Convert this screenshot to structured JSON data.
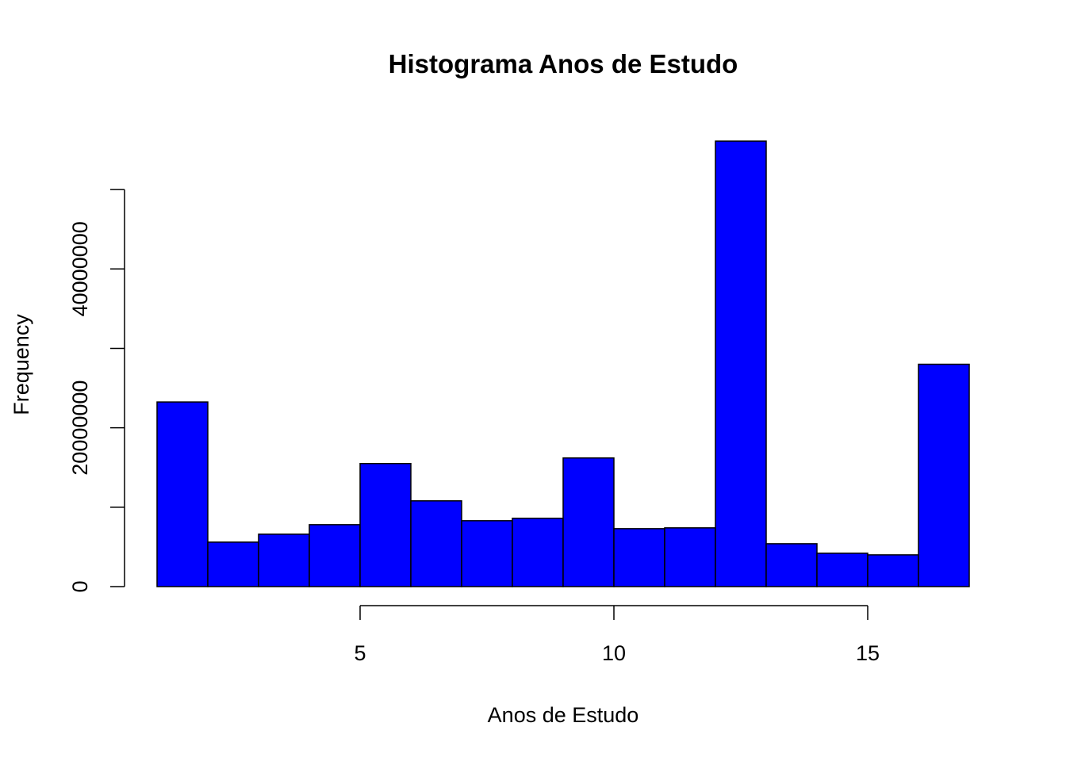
{
  "chart_data": {
    "type": "histogram",
    "title": "Histograma Anos de Estudo",
    "x_label": "Anos de Estudo",
    "y_label": "Frequency",
    "bins": [
      1,
      2,
      3,
      4,
      5,
      6,
      7,
      8,
      9,
      10,
      11,
      12,
      13,
      14,
      15,
      16,
      17
    ],
    "values": [
      23250000,
      5600000,
      6600000,
      7800000,
      15500000,
      10800000,
      8300000,
      8600000,
      16200000,
      7300000,
      7400000,
      56100000,
      5400000,
      4200000,
      4000000,
      28000000
    ],
    "color": "#0000ff",
    "xlim": [
      1,
      17
    ],
    "xticks": [
      5,
      10,
      15
    ],
    "ylim": [
      0,
      58000000
    ],
    "yticks": [
      0,
      20000000,
      40000000
    ],
    "yminorticks": [
      10000000,
      30000000,
      50000000
    ]
  }
}
